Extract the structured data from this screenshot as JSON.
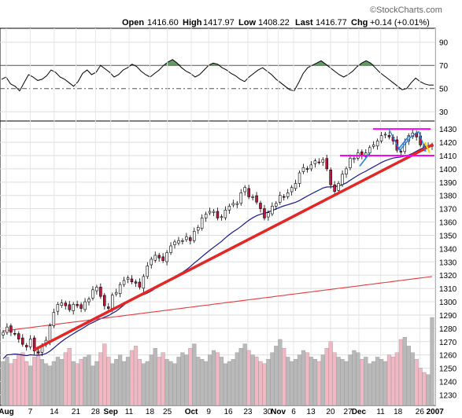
{
  "header": {
    "watermark": "©StockCharts.com",
    "quote_label_open": "Open",
    "quote_value_open": "1416.60",
    "quote_label_high": "High",
    "quote_value_high": "1417.97",
    "quote_label_low": "Low",
    "quote_value_low": "1408.22",
    "quote_label_last": "Last",
    "quote_value_last": "1416.77",
    "quote_label_chg": "Chg",
    "quote_value_chg": "+0.14 (+0.01%)"
  },
  "chart_data": [
    {
      "type": "line",
      "panel": "oscillator",
      "yticks": [
        90,
        70,
        50,
        30
      ],
      "ylim": [
        22,
        102
      ],
      "reference_lines": [
        70,
        50
      ],
      "series": [
        {
          "values": [
            58,
            60,
            54,
            52,
            48,
            55,
            62,
            60,
            57,
            58,
            61,
            66,
            64,
            60,
            58,
            55,
            52,
            56,
            63,
            66,
            62,
            64,
            70,
            67,
            64,
            60,
            62,
            66,
            68,
            71,
            69,
            65,
            62,
            60,
            63,
            66,
            70,
            73,
            75,
            72,
            68,
            65,
            63,
            60,
            62,
            66,
            70,
            72,
            71,
            68,
            66,
            63,
            61,
            58,
            56,
            60,
            63,
            66,
            68,
            65,
            62,
            58,
            55,
            52,
            49,
            48,
            55,
            63,
            68,
            70,
            72,
            74,
            71,
            68,
            65,
            62,
            60,
            62,
            65,
            69,
            72,
            74,
            72,
            68,
            64,
            61,
            58,
            55,
            52,
            49,
            50,
            55,
            59,
            56,
            54,
            53,
            53
          ]
        }
      ]
    },
    {
      "type": "candlestick",
      "panel": "price",
      "yticks": [
        1430,
        1420,
        1410,
        1400,
        1390,
        1380,
        1370,
        1360,
        1350,
        1340,
        1330,
        1320,
        1310,
        1300,
        1290,
        1280,
        1270,
        1260,
        1250,
        1240,
        1230
      ],
      "ylim": [
        1222,
        1436
      ],
      "xticks": [
        "Aug",
        "7",
        "14",
        "21",
        "28",
        "Sep",
        "11",
        "18",
        "25",
        "Oct",
        "9",
        "16",
        "23",
        "30",
        "Nov",
        "6",
        "13",
        "20",
        "27",
        "Dec",
        "11",
        "18",
        "26",
        "2007"
      ],
      "close": [
        1277,
        1281,
        1277,
        1276,
        1272,
        1268,
        1266,
        1272,
        1263,
        1262,
        1267,
        1271,
        1282,
        1292,
        1298,
        1299,
        1297,
        1294,
        1298,
        1297,
        1295,
        1300,
        1302,
        1309,
        1311,
        1304,
        1297,
        1295,
        1305,
        1307,
        1313,
        1316,
        1318,
        1315,
        1314,
        1311,
        1319,
        1327,
        1332,
        1335,
        1333,
        1331,
        1337,
        1342,
        1345,
        1346,
        1346,
        1349,
        1346,
        1353,
        1356,
        1363,
        1366,
        1368,
        1368,
        1363,
        1364,
        1369,
        1372,
        1374,
        1374,
        1382,
        1386,
        1379,
        1379,
        1375,
        1370,
        1363,
        1367,
        1372,
        1374,
        1380,
        1379,
        1382,
        1386,
        1389,
        1397,
        1401,
        1400,
        1403,
        1406,
        1405,
        1407,
        1400,
        1388,
        1383,
        1389,
        1396,
        1400,
        1408,
        1408,
        1412,
        1410,
        1412,
        1416,
        1418,
        1421,
        1425,
        1426,
        1424,
        1421,
        1414,
        1413,
        1420,
        1425,
        1427,
        1424,
        1418,
        1416,
        1417,
        1417
      ],
      "moving_averages": [
        {
          "color": "#1a1a8c",
          "values": [
            1257,
            1401
          ]
        },
        {
          "color": "#e63b3b",
          "values": [
            1278,
            1319
          ]
        }
      ],
      "annotations": {
        "trend_line": {
          "color": "#e32626",
          "from": [
            1264,
            0
          ],
          "to": [
            1418,
            1
          ]
        },
        "channel_top": {
          "color": "#ff00ff",
          "value": 1430
        },
        "channel_bottom": {
          "color": "#ff00ff",
          "value": 1410
        }
      }
    },
    {
      "type": "bar",
      "panel": "volume",
      "values": [
        20,
        22,
        19,
        21,
        23,
        24,
        20,
        18,
        22,
        25,
        21,
        19,
        18,
        20,
        22,
        21,
        24,
        26,
        20,
        19,
        21,
        22,
        23,
        18,
        20,
        24,
        28,
        22,
        19,
        21,
        23,
        20,
        22,
        25,
        27,
        21,
        19,
        20,
        23,
        26,
        22,
        24,
        21,
        20,
        19,
        22,
        24,
        23,
        26,
        28,
        22,
        21,
        20,
        23,
        25,
        24,
        22,
        19,
        20,
        21,
        24,
        26,
        28,
        25,
        23,
        22,
        20,
        19,
        21,
        24,
        27,
        30,
        26,
        22,
        20,
        21,
        23,
        25,
        24,
        22,
        21,
        20,
        23,
        26,
        29,
        24,
        22,
        21,
        20,
        23,
        25,
        24,
        21,
        22,
        19,
        20,
        22,
        21,
        20,
        23,
        22,
        24,
        30,
        31,
        27,
        24,
        21,
        17,
        15,
        14,
        40
      ]
    }
  ]
}
